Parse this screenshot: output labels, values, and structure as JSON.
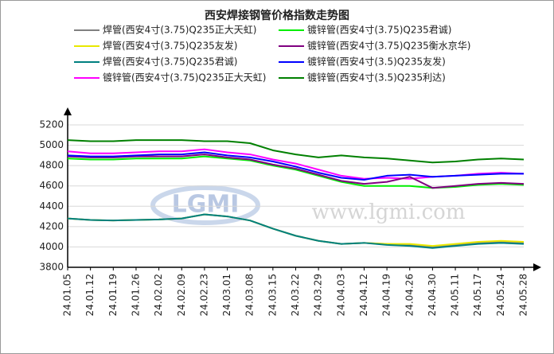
{
  "chart_data": {
    "type": "line",
    "title": "西安焊接钢管价格指数走势图",
    "watermark_logo": "LGMI",
    "watermark": "www.lgmi.com",
    "categories": [
      "24.01.05",
      "24.01.12",
      "24.01.19",
      "24.01.26",
      "24.02.02",
      "24.02.09",
      "24.02.23",
      "24.03.01",
      "24.03.08",
      "24.03.15",
      "24.03.22",
      "24.03.29",
      "24.04.03",
      "24.04.12",
      "24.04.19",
      "24.04.26",
      "24.04.30",
      "24.05.11",
      "24.05.17",
      "24.05.24",
      "24.05.28"
    ],
    "series": [
      {
        "name": "焊管(西安4寸(3.75)Q235正大天虹)",
        "color": "#808080",
        "values": [
          4280,
          4265,
          4260,
          4265,
          4270,
          4280,
          4320,
          4300,
          4260,
          4180,
          4110,
          4060,
          4030,
          4040,
          4030,
          4020,
          4000,
          4020,
          4040,
          4050,
          4040
        ]
      },
      {
        "name": "焊管(西安4寸(3.75)Q235友发)",
        "color": "#e8e800",
        "values": [
          4280,
          4265,
          4260,
          4265,
          4270,
          4280,
          4320,
          4300,
          4260,
          4180,
          4110,
          4060,
          4030,
          4040,
          4030,
          4030,
          4010,
          4030,
          4050,
          4060,
          4050
        ]
      },
      {
        "name": "焊管(西安4寸(3.75)Q235君诚)",
        "color": "#008080",
        "values": [
          4280,
          4265,
          4260,
          4265,
          4270,
          4280,
          4320,
          4300,
          4260,
          4180,
          4110,
          4060,
          4030,
          4040,
          4020,
          4010,
          3990,
          4010,
          4030,
          4040,
          4030
        ]
      },
      {
        "name": "镀锌管(西安4寸(3.75)Q235正大天虹)",
        "color": "#ff00ff",
        "values": [
          4940,
          4920,
          4920,
          4930,
          4940,
          4940,
          4960,
          4930,
          4910,
          4860,
          4820,
          4760,
          4700,
          4670,
          4680,
          4670,
          4690,
          4700,
          4720,
          4730,
          4720
        ]
      },
      {
        "name": "镀锌管(西安4寸(3.75)Q235君诚)",
        "color": "#00ee00",
        "values": [
          4870,
          4860,
          4860,
          4870,
          4870,
          4870,
          4890,
          4870,
          4850,
          4800,
          4760,
          4700,
          4640,
          4600,
          4600,
          4600,
          4580,
          4590,
          4610,
          4620,
          4610
        ]
      },
      {
        "name": "镀锌管(西安4寸(3.75)Q235衡水京华)",
        "color": "#800080",
        "values": [
          4890,
          4880,
          4880,
          4890,
          4890,
          4890,
          4910,
          4880,
          4860,
          4810,
          4770,
          4710,
          4650,
          4620,
          4640,
          4690,
          4580,
          4600,
          4620,
          4630,
          4620
        ]
      },
      {
        "name": "镀锌管(西安4寸(3.5)Q235友发)",
        "color": "#0000ff",
        "values": [
          4900,
          4890,
          4890,
          4900,
          4910,
          4910,
          4930,
          4900,
          4880,
          4840,
          4790,
          4730,
          4680,
          4660,
          4700,
          4710,
          4690,
          4700,
          4710,
          4720,
          4720
        ]
      },
      {
        "name": "镀锌管(西安4寸(3.5)Q235利达)",
        "color": "#008000",
        "values": [
          5050,
          5040,
          5040,
          5050,
          5050,
          5050,
          5040,
          5040,
          5020,
          4950,
          4910,
          4880,
          4900,
          4880,
          4870,
          4850,
          4830,
          4840,
          4860,
          4870,
          4860
        ]
      }
    ],
    "ylim": [
      3800,
      5200
    ],
    "yticks": [
      3800,
      4000,
      4200,
      4400,
      4600,
      4800,
      5000,
      5200
    ],
    "grid": true
  }
}
